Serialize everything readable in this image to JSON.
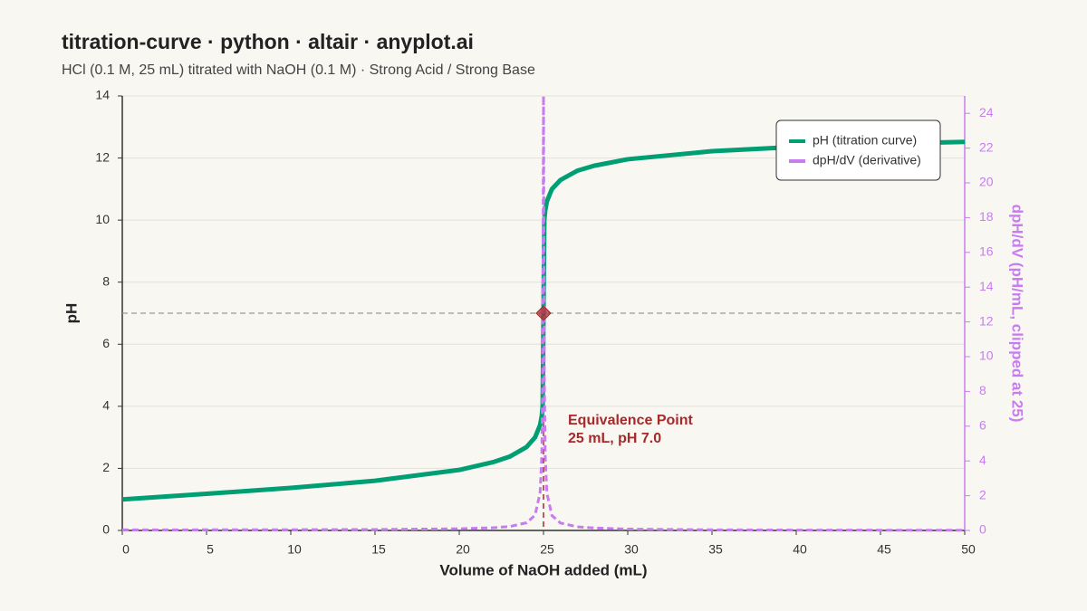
{
  "chart_data": {
    "type": "line",
    "title": "titration-curve · python · altair · anyplot.ai",
    "subtitle": "HCl (0.1 M, 25 mL) titrated with NaOH (0.1 M) · Strong Acid / Strong Base",
    "x_label": "Volume of NaOH added (mL)",
    "y_label": "pH",
    "y2_label": "dpH/dV (pH/mL, clipped at 25)",
    "x": [
      0,
      5,
      10,
      15,
      20,
      22,
      23,
      24,
      24.5,
      24.8,
      24.9,
      24.95,
      25,
      25.05,
      25.1,
      25.2,
      25.5,
      26,
      27,
      28,
      30,
      35,
      40,
      45,
      50
    ],
    "series": [
      {
        "name": "pH (titration curve)",
        "color": "#009e73",
        "values": [
          1.0,
          1.18,
          1.37,
          1.6,
          1.95,
          2.2,
          2.38,
          2.69,
          3.0,
          3.4,
          3.7,
          4.0,
          7.0,
          10.0,
          10.3,
          10.6,
          11.0,
          11.29,
          11.59,
          11.75,
          11.96,
          12.22,
          12.36,
          12.46,
          12.52
        ]
      },
      {
        "name": "dpH/dV (derivative)",
        "color": "#c77df0",
        "axis": "y2",
        "dashed": true,
        "values": [
          0.035,
          0.036,
          0.041,
          0.054,
          0.097,
          0.154,
          0.226,
          0.443,
          0.88,
          2.18,
          4.35,
          8.7,
          25,
          8.7,
          4.35,
          2.16,
          0.86,
          0.43,
          0.21,
          0.14,
          0.079,
          0.036,
          0.022,
          0.016,
          0.012
        ]
      }
    ],
    "xlim": [
      0,
      50
    ],
    "xticks": [
      0,
      5,
      10,
      15,
      20,
      25,
      30,
      35,
      40,
      45,
      50
    ],
    "ylim": [
      0,
      14
    ],
    "yticks": [
      0,
      2,
      4,
      6,
      8,
      10,
      12,
      14
    ],
    "y2lim": [
      0,
      25
    ],
    "y2ticks": [
      0,
      2,
      4,
      6,
      8,
      10,
      12,
      14,
      16,
      18,
      20,
      22,
      24
    ],
    "equivalence": {
      "x": 25,
      "y": 7,
      "color": "#a52a2a"
    },
    "annotation": [
      "Equivalence Point",
      "25 mL, pH 7.0"
    ],
    "grid": true,
    "legend": "top-right"
  }
}
